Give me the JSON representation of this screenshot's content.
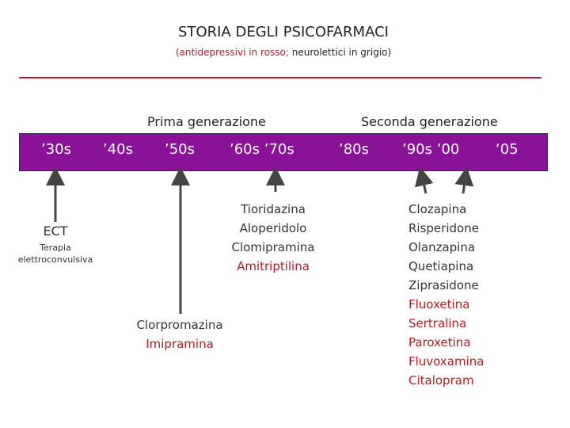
{
  "title": "STORIA DEGLI PSICOFARMACI",
  "subtitle": {
    "part1": "(antidepressivi in rosso;",
    "part2": " neurolettici in grigio)"
  },
  "generations": {
    "first": "Prima generazione",
    "second": "Seconda generazione"
  },
  "decades": [
    "’30s",
    "’40s",
    "’50s",
    "’60s  ’70s",
    "’80s",
    "’90s  ’00",
    "‘05"
  ],
  "ect": {
    "label": "ECT",
    "sublabel_1": "Terapia",
    "sublabel_2": "elettroconvulsiva"
  },
  "fifties_drugs": [
    {
      "name": "Clorpromazina",
      "class": "neurolettico"
    },
    {
      "name": "Imipramina",
      "class": "antidepressivo"
    }
  ],
  "sixties_drugs": [
    {
      "name": "Tioridazina",
      "class": "neurolettico"
    },
    {
      "name": "Aloperidolo",
      "class": "neurolettico"
    },
    {
      "name": "Clomipramina",
      "class": "neurolettico"
    },
    {
      "name": "Amitriptilina",
      "class": "antidepressivo"
    }
  ],
  "nineties_drugs": [
    {
      "name": "Clozapina",
      "class": "neurolettico"
    },
    {
      "name": "Risperidone",
      "class": "neurolettico"
    },
    {
      "name": "Olanzapina",
      "class": "neurolettico"
    },
    {
      "name": "Quetiapina",
      "class": "neurolettico"
    },
    {
      "name": "Ziprasidone",
      "class": "neurolettico"
    },
    {
      "name": "Fluoxetina",
      "class": "antidepressivo"
    },
    {
      "name": "Sertralina",
      "class": "antidepressivo"
    },
    {
      "name": "Paroxetina",
      "class": "antidepressivo"
    },
    {
      "name": "Fluvoxamina",
      "class": "antidepressivo"
    },
    {
      "name": "Citalopram",
      "class": "antidepressivo"
    }
  ],
  "colors": {
    "timeline_bar": "#8a1298",
    "antidepressant": "#b01f24",
    "neuroleptic": "#333333",
    "rule": "#b21f2d"
  }
}
